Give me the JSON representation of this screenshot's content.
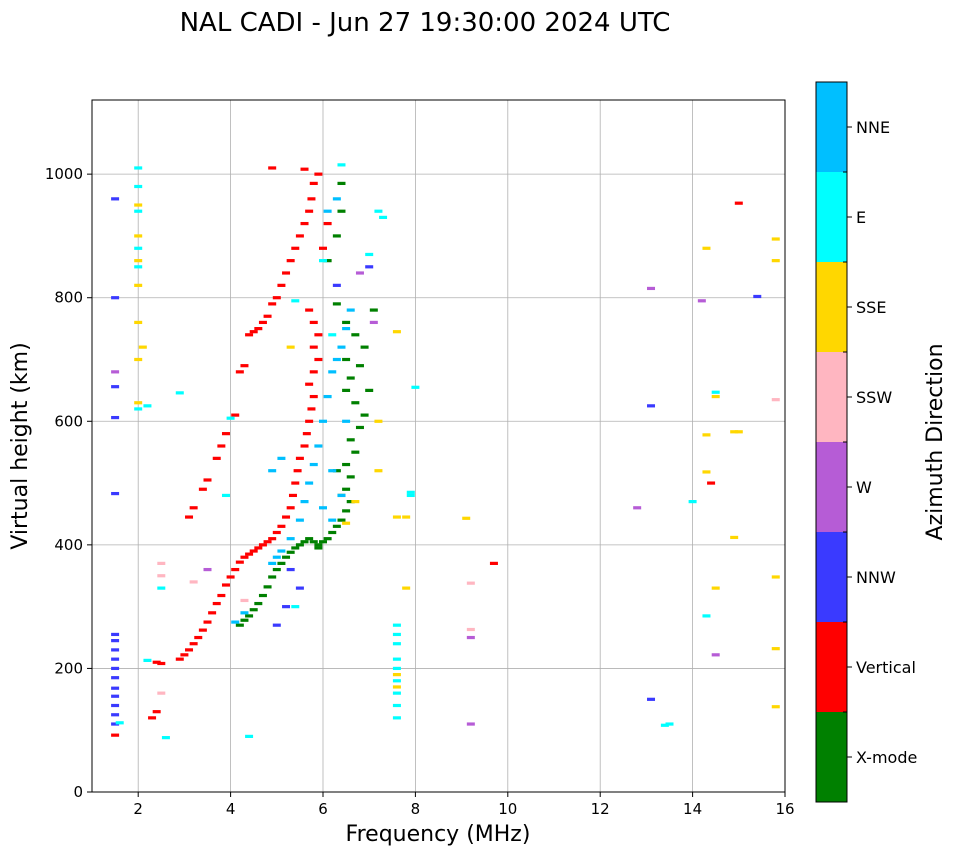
{
  "chart_data": {
    "type": "scatter",
    "title": "NAL CADI - Jun 27 19:30:00 2024 UTC",
    "xlabel": "Frequency (MHz)",
    "ylabel": "Virtual height (km)",
    "xlim": [
      1,
      16
    ],
    "ylim": [
      0,
      1120
    ],
    "xticks": [
      2,
      4,
      6,
      8,
      10,
      12,
      14,
      16
    ],
    "yticks": [
      0,
      200,
      400,
      600,
      800,
      1000
    ],
    "grid": true,
    "colorbar": {
      "label": "Azimuth Direction",
      "entries": [
        {
          "name": "X-mode",
          "color": "#008000"
        },
        {
          "name": "Vertical",
          "color": "#ff0000"
        },
        {
          "name": "NNW",
          "color": "#3a3aff"
        },
        {
          "name": "W",
          "color": "#b65cd6"
        },
        {
          "name": "SSW",
          "color": "#ffb6c1"
        },
        {
          "name": "SSE",
          "color": "#ffd700"
        },
        {
          "name": "E",
          "color": "#00ffff"
        },
        {
          "name": "NNE",
          "color": "#00bfff"
        }
      ]
    },
    "series": [
      {
        "name": "X-mode",
        "points": [
          [
            4.2,
            270
          ],
          [
            4.3,
            278
          ],
          [
            4.4,
            285
          ],
          [
            4.5,
            295
          ],
          [
            4.6,
            305
          ],
          [
            4.7,
            318
          ],
          [
            4.8,
            332
          ],
          [
            4.9,
            348
          ],
          [
            5.0,
            360
          ],
          [
            5.1,
            370
          ],
          [
            5.2,
            380
          ],
          [
            5.3,
            388
          ],
          [
            5.4,
            395
          ],
          [
            5.5,
            400
          ],
          [
            5.6,
            405
          ],
          [
            5.7,
            410
          ],
          [
            5.8,
            405
          ],
          [
            5.9,
            400
          ],
          [
            6.0,
            405
          ],
          [
            6.1,
            410
          ],
          [
            6.2,
            420
          ],
          [
            6.3,
            430
          ],
          [
            6.4,
            440
          ],
          [
            6.5,
            455
          ],
          [
            6.6,
            470
          ],
          [
            6.5,
            490
          ],
          [
            6.6,
            510
          ],
          [
            6.5,
            530
          ],
          [
            6.7,
            550
          ],
          [
            6.6,
            570
          ],
          [
            6.8,
            590
          ],
          [
            6.9,
            610
          ],
          [
            6.7,
            630
          ],
          [
            6.5,
            650
          ],
          [
            6.6,
            670
          ],
          [
            6.8,
            690
          ],
          [
            6.9,
            720
          ],
          [
            6.7,
            740
          ],
          [
            6.5,
            760
          ],
          [
            6.3,
            790
          ],
          [
            6.1,
            860
          ],
          [
            6.4,
            940
          ],
          [
            6.4,
            985
          ],
          [
            6.3,
            900
          ],
          [
            6.5,
            700
          ],
          [
            6.3,
            520
          ],
          [
            6.4,
            480
          ],
          [
            7.0,
            650
          ],
          [
            7.1,
            780
          ],
          [
            5.9,
            395
          ]
        ]
      },
      {
        "name": "Vertical",
        "points": [
          [
            1.5,
            92
          ],
          [
            2.3,
            120
          ],
          [
            2.4,
            130
          ],
          [
            2.4,
            210
          ],
          [
            2.5,
            208
          ],
          [
            2.9,
            215
          ],
          [
            3.0,
            222
          ],
          [
            3.1,
            230
          ],
          [
            3.2,
            240
          ],
          [
            3.3,
            250
          ],
          [
            3.4,
            262
          ],
          [
            3.5,
            275
          ],
          [
            3.6,
            290
          ],
          [
            3.7,
            305
          ],
          [
            3.8,
            318
          ],
          [
            3.9,
            335
          ],
          [
            4.0,
            348
          ],
          [
            4.1,
            360
          ],
          [
            4.2,
            372
          ],
          [
            4.3,
            380
          ],
          [
            4.4,
            385
          ],
          [
            4.5,
            390
          ],
          [
            4.6,
            395
          ],
          [
            4.7,
            400
          ],
          [
            4.8,
            405
          ],
          [
            4.9,
            410
          ],
          [
            5.0,
            420
          ],
          [
            5.1,
            430
          ],
          [
            5.2,
            445
          ],
          [
            5.3,
            460
          ],
          [
            5.35,
            480
          ],
          [
            5.4,
            500
          ],
          [
            5.45,
            520
          ],
          [
            5.5,
            540
          ],
          [
            5.6,
            560
          ],
          [
            5.65,
            580
          ],
          [
            5.7,
            600
          ],
          [
            5.75,
            620
          ],
          [
            5.8,
            640
          ],
          [
            5.7,
            660
          ],
          [
            5.8,
            680
          ],
          [
            5.9,
            700
          ],
          [
            5.8,
            720
          ],
          [
            5.9,
            740
          ],
          [
            5.8,
            760
          ],
          [
            5.7,
            780
          ],
          [
            3.1,
            445
          ],
          [
            3.2,
            460
          ],
          [
            3.4,
            490
          ],
          [
            3.5,
            505
          ],
          [
            3.7,
            540
          ],
          [
            3.8,
            560
          ],
          [
            3.9,
            580
          ],
          [
            4.1,
            610
          ],
          [
            4.2,
            680
          ],
          [
            4.3,
            690
          ],
          [
            4.4,
            740
          ],
          [
            4.5,
            745
          ],
          [
            4.6,
            750
          ],
          [
            4.7,
            760
          ],
          [
            4.8,
            770
          ],
          [
            4.9,
            790
          ],
          [
            5.0,
            800
          ],
          [
            5.1,
            820
          ],
          [
            5.2,
            840
          ],
          [
            5.3,
            860
          ],
          [
            5.4,
            880
          ],
          [
            5.5,
            900
          ],
          [
            5.6,
            920
          ],
          [
            5.7,
            940
          ],
          [
            5.75,
            960
          ],
          [
            5.8,
            985
          ],
          [
            5.9,
            1000
          ],
          [
            5.6,
            1008
          ],
          [
            6.1,
            920
          ],
          [
            6.0,
            880
          ],
          [
            4.9,
            1010
          ],
          [
            9.7,
            370
          ],
          [
            14.4,
            500
          ],
          [
            15.0,
            953
          ]
        ]
      },
      {
        "name": "NNW",
        "points": [
          [
            1.5,
            110
          ],
          [
            1.5,
            125
          ],
          [
            1.5,
            140
          ],
          [
            1.5,
            155
          ],
          [
            1.5,
            168
          ],
          [
            1.5,
            185
          ],
          [
            1.5,
            200
          ],
          [
            1.5,
            215
          ],
          [
            1.5,
            230
          ],
          [
            1.5,
            245
          ],
          [
            1.5,
            255
          ],
          [
            1.5,
            483
          ],
          [
            1.5,
            606
          ],
          [
            1.5,
            656
          ],
          [
            1.5,
            800
          ],
          [
            1.5,
            960
          ],
          [
            5.0,
            270
          ],
          [
            5.2,
            300
          ],
          [
            5.5,
            330
          ],
          [
            5.3,
            360
          ],
          [
            6.3,
            820
          ],
          [
            7.0,
            850
          ],
          [
            13.1,
            625
          ],
          [
            13.1,
            150
          ],
          [
            15.4,
            802
          ]
        ]
      },
      {
        "name": "W",
        "points": [
          [
            1.5,
            680
          ],
          [
            9.2,
            110
          ],
          [
            9.2,
            250
          ],
          [
            12.8,
            460
          ],
          [
            13.1,
            815
          ],
          [
            14.2,
            795
          ],
          [
            14.5,
            222
          ],
          [
            7.1,
            760
          ],
          [
            6.8,
            840
          ],
          [
            3.5,
            360
          ]
        ]
      },
      {
        "name": "SSW",
        "points": [
          [
            2.5,
            160
          ],
          [
            2.5,
            350
          ],
          [
            2.5,
            370
          ],
          [
            9.2,
            263
          ],
          [
            9.2,
            338
          ],
          [
            15.8,
            635
          ],
          [
            4.3,
            310
          ],
          [
            3.2,
            340
          ]
        ]
      },
      {
        "name": "SSE",
        "points": [
          [
            2.0,
            630
          ],
          [
            2.0,
            700
          ],
          [
            2.0,
            760
          ],
          [
            2.0,
            820
          ],
          [
            2.0,
            860
          ],
          [
            2.0,
            900
          ],
          [
            2.0,
            950
          ],
          [
            2.1,
            720
          ],
          [
            7.6,
            445
          ],
          [
            7.8,
            445
          ],
          [
            7.8,
            330
          ],
          [
            9.1,
            443
          ],
          [
            6.5,
            435
          ],
          [
            7.2,
            520
          ],
          [
            7.2,
            600
          ],
          [
            14.3,
            880
          ],
          [
            15.8,
            895
          ],
          [
            15.8,
            860
          ],
          [
            14.5,
            640
          ],
          [
            14.3,
            578
          ],
          [
            14.3,
            518
          ],
          [
            14.9,
            583
          ],
          [
            15.0,
            583
          ],
          [
            14.9,
            412
          ],
          [
            14.5,
            330
          ],
          [
            15.8,
            348
          ],
          [
            15.8,
            232
          ],
          [
            15.8,
            138
          ],
          [
            7.6,
            190
          ],
          [
            7.6,
            170
          ],
          [
            5.3,
            720
          ],
          [
            7.6,
            745
          ],
          [
            6.7,
            470
          ]
        ]
      },
      {
        "name": "E",
        "points": [
          [
            1.6,
            112
          ],
          [
            2.0,
            1010
          ],
          [
            2.0,
            980
          ],
          [
            2.0,
            940
          ],
          [
            2.0,
            880
          ],
          [
            2.0,
            850
          ],
          [
            2.0,
            620
          ],
          [
            2.2,
            625
          ],
          [
            2.9,
            646
          ],
          [
            2.5,
            330
          ],
          [
            2.2,
            213
          ],
          [
            2.6,
            88
          ],
          [
            4.4,
            90
          ],
          [
            7.6,
            270
          ],
          [
            7.6,
            255
          ],
          [
            7.6,
            240
          ],
          [
            7.6,
            215
          ],
          [
            7.6,
            200
          ],
          [
            7.6,
            180
          ],
          [
            7.6,
            160
          ],
          [
            7.6,
            140
          ],
          [
            7.6,
            120
          ],
          [
            8.0,
            655
          ],
          [
            7.9,
            485
          ],
          [
            7.9,
            480
          ],
          [
            7.2,
            940
          ],
          [
            7.3,
            930
          ],
          [
            7.0,
            870
          ],
          [
            14.0,
            470
          ],
          [
            14.3,
            285
          ],
          [
            14.5,
            647
          ],
          [
            13.5,
            110
          ],
          [
            13.4,
            108
          ],
          [
            4.0,
            605
          ],
          [
            3.9,
            480
          ],
          [
            6.4,
            1015
          ],
          [
            5.4,
            795
          ],
          [
            6.2,
            740
          ],
          [
            5.4,
            300
          ],
          [
            6.0,
            860
          ]
        ]
      },
      {
        "name": "NNE",
        "points": [
          [
            4.9,
            370
          ],
          [
            5.0,
            380
          ],
          [
            5.1,
            390
          ],
          [
            5.3,
            410
          ],
          [
            5.5,
            440
          ],
          [
            5.6,
            470
          ],
          [
            5.7,
            500
          ],
          [
            5.8,
            530
          ],
          [
            5.9,
            560
          ],
          [
            6.0,
            600
          ],
          [
            6.1,
            640
          ],
          [
            6.2,
            680
          ],
          [
            6.3,
            700
          ],
          [
            6.4,
            720
          ],
          [
            6.5,
            750
          ],
          [
            6.6,
            780
          ],
          [
            6.1,
            940
          ],
          [
            6.3,
            960
          ],
          [
            6.2,
            520
          ],
          [
            6.5,
            600
          ],
          [
            4.9,
            520
          ],
          [
            5.1,
            540
          ],
          [
            6.0,
            460
          ],
          [
            6.2,
            440
          ],
          [
            6.4,
            480
          ],
          [
            4.1,
            275
          ],
          [
            4.3,
            290
          ]
        ]
      }
    ]
  }
}
